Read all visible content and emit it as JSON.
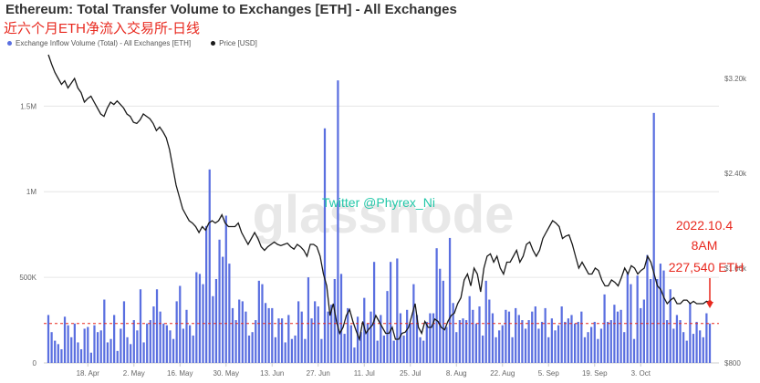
{
  "title": "Ethereum: Total Transfer Volume to Exchanges [ETH] - All Exchanges",
  "subtitle": "近六个月ETH净流入交易所-日线",
  "watermark": "glassnode",
  "overlay_text": "Twitter @Phyrex_Ni",
  "annotation": {
    "date": "2022.10.4",
    "time": "8AM",
    "value": "227,540 ETH"
  },
  "colors": {
    "bars": "#5a6fe0",
    "price_line": "#1a1a1a",
    "reference_line": "#e8281e",
    "overlay_text": "#22c7a8",
    "annotation": "#e8281e"
  },
  "chart_data": {
    "type": "bar",
    "legend_position": "top-left",
    "grid": true,
    "x_tick_labels": [
      "18. Apr",
      "2. May",
      "16. May",
      "30. May",
      "13. Jun",
      "27. Jun",
      "11. Jul",
      "25. Jul",
      "8. Aug",
      "22. Aug",
      "5. Sep",
      "19. Sep",
      "3. Oct"
    ],
    "y_left_ticks": [
      "0",
      "500K",
      "1M",
      "1.5M"
    ],
    "y_left_range": [
      0,
      1800000
    ],
    "y_right_ticks": [
      "$800",
      "$1.60k",
      "$2.40k",
      "$3.20k"
    ],
    "y_right_range": [
      800,
      3400
    ],
    "reference_value": 230000,
    "series": [
      {
        "name": "Exchange Inflow Volume (Total) - All Exchanges [ETH]",
        "axis": "left",
        "type": "bar",
        "x_start": "2022-04-06",
        "x_end": "2022-10-04",
        "values": [
          280000,
          180000,
          130000,
          110000,
          80000,
          270000,
          220000,
          150000,
          230000,
          120000,
          80000,
          200000,
          210000,
          60000,
          220000,
          180000,
          190000,
          370000,
          120000,
          140000,
          280000,
          70000,
          200000,
          360000,
          150000,
          110000,
          250000,
          190000,
          430000,
          120000,
          230000,
          250000,
          330000,
          430000,
          300000,
          230000,
          220000,
          190000,
          140000,
          360000,
          450000,
          200000,
          310000,
          220000,
          160000,
          530000,
          520000,
          460000,
          800000,
          1130000,
          390000,
          490000,
          720000,
          620000,
          860000,
          580000,
          320000,
          250000,
          370000,
          360000,
          300000,
          160000,
          180000,
          250000,
          480000,
          460000,
          350000,
          320000,
          320000,
          150000,
          260000,
          260000,
          120000,
          280000,
          140000,
          160000,
          360000,
          300000,
          140000,
          500000,
          260000,
          360000,
          330000,
          140000,
          1370000,
          300000,
          340000,
          490000,
          1650000,
          520000,
          170000,
          320000,
          220000,
          90000,
          270000,
          180000,
          380000,
          230000,
          300000,
          590000,
          130000,
          280000,
          160000,
          420000,
          590000,
          130000,
          610000,
          290000,
          160000,
          310000,
          230000,
          460000,
          280000,
          150000,
          130000,
          240000,
          290000,
          290000,
          670000,
          550000,
          480000,
          210000,
          730000,
          350000,
          180000,
          250000,
          260000,
          250000,
          390000,
          310000,
          230000,
          330000,
          160000,
          480000,
          370000,
          290000,
          150000,
          190000,
          220000,
          310000,
          300000,
          150000,
          320000,
          280000,
          250000,
          200000,
          250000,
          300000,
          330000,
          200000,
          240000,
          320000,
          150000,
          260000,
          190000,
          220000,
          330000,
          240000,
          260000,
          280000,
          230000,
          240000,
          300000,
          150000,
          180000,
          210000,
          240000,
          140000,
          200000,
          400000,
          240000,
          250000,
          340000,
          300000,
          310000,
          180000,
          530000,
          460000,
          140000,
          510000,
          320000,
          370000,
          630000,
          490000,
          1460000,
          490000,
          580000,
          540000,
          250000,
          430000,
          200000,
          280000,
          250000,
          180000,
          130000,
          350000,
          170000,
          240000,
          190000,
          150000,
          290000,
          230000
        ]
      },
      {
        "name": "Price [USD]",
        "axis": "right",
        "type": "line",
        "x_start": "2022-04-06",
        "x_end": "2022-10-04",
        "values": [
          3400,
          3320,
          3250,
          3200,
          3150,
          3180,
          3120,
          3160,
          3200,
          3120,
          3080,
          3000,
          3030,
          3050,
          3000,
          2950,
          2900,
          2880,
          2950,
          3000,
          2980,
          3010,
          2980,
          2950,
          2900,
          2880,
          2830,
          2820,
          2850,
          2900,
          2880,
          2860,
          2820,
          2760,
          2790,
          2750,
          2700,
          2600,
          2450,
          2300,
          2200,
          2100,
          2050,
          2000,
          1980,
          1950,
          1900,
          1950,
          1920,
          1980,
          2000,
          1980,
          2000,
          2050,
          1980,
          1950,
          1950,
          1950,
          1980,
          1900,
          1850,
          1800,
          1850,
          1900,
          1850,
          1780,
          1750,
          1780,
          1800,
          1820,
          1800,
          1790,
          1800,
          1810,
          1780,
          1760,
          1800,
          1780,
          1750,
          1700,
          1800,
          1800,
          1780,
          1700,
          1550,
          1450,
          1200,
          1300,
          1150,
          1050,
          1100,
          1200,
          1250,
          1150,
          1070,
          1000,
          1150,
          1050,
          1090,
          1120,
          1200,
          1150,
          1100,
          1050,
          1050,
          1100,
          1000,
          1000,
          1050,
          1060,
          1100,
          1200,
          1300,
          1100,
          1050,
          1150,
          1100,
          1100,
          1170,
          1150,
          1100,
          1080,
          1150,
          1200,
          1220,
          1300,
          1350,
          1500,
          1550,
          1450,
          1600,
          1550,
          1400,
          1600,
          1700,
          1720,
          1650,
          1700,
          1600,
          1550,
          1650,
          1650,
          1700,
          1750,
          1650,
          1700,
          1800,
          1820,
          1750,
          1700,
          1750,
          1850,
          1900,
          1950,
          2000,
          1980,
          1950,
          1850,
          1870,
          1880,
          1800,
          1700,
          1600,
          1650,
          1600,
          1550,
          1550,
          1600,
          1580,
          1500,
          1450,
          1450,
          1500,
          1480,
          1450,
          1520,
          1600,
          1550,
          1620,
          1600,
          1550,
          1580,
          1600,
          1700,
          1650,
          1550,
          1450,
          1420,
          1350,
          1300,
          1330,
          1350,
          1300,
          1300,
          1330,
          1330,
          1300,
          1320,
          1300,
          1300,
          1300,
          1320,
          1310
        ]
      }
    ]
  }
}
